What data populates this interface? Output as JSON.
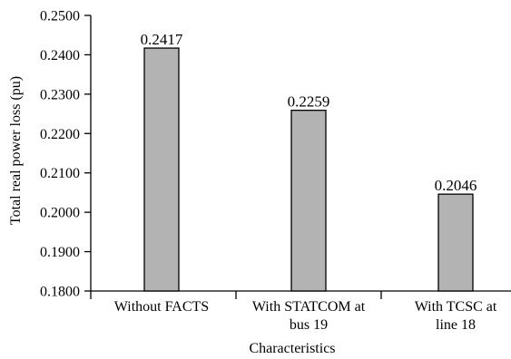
{
  "chart_data": {
    "type": "bar",
    "categories": [
      [
        "Without FACTS"
      ],
      [
        "With STATCOM at",
        "bus 19"
      ],
      [
        "With TCSC at",
        "line 18"
      ]
    ],
    "values": [
      0.2417,
      0.2259,
      0.2046
    ],
    "data_labels": [
      "0.2417",
      "0.2259",
      "0.2046"
    ],
    "xlabel": "Characteristics",
    "ylabel": "Total real power loss (pu)",
    "ylim": [
      0.18,
      0.25
    ],
    "y_ticks": [
      0.25,
      0.24,
      0.23,
      0.22,
      0.21,
      0.2,
      0.19,
      0.18
    ],
    "y_tick_labels": [
      "0.2500",
      "0.2400",
      "0.2300",
      "0.2200",
      "0.2100",
      "0.2000",
      "0.1900",
      "0.1800"
    ],
    "bar_color": "#b3b3b3",
    "bar_edge_color": "#000000",
    "grid": false,
    "legend": "none"
  }
}
